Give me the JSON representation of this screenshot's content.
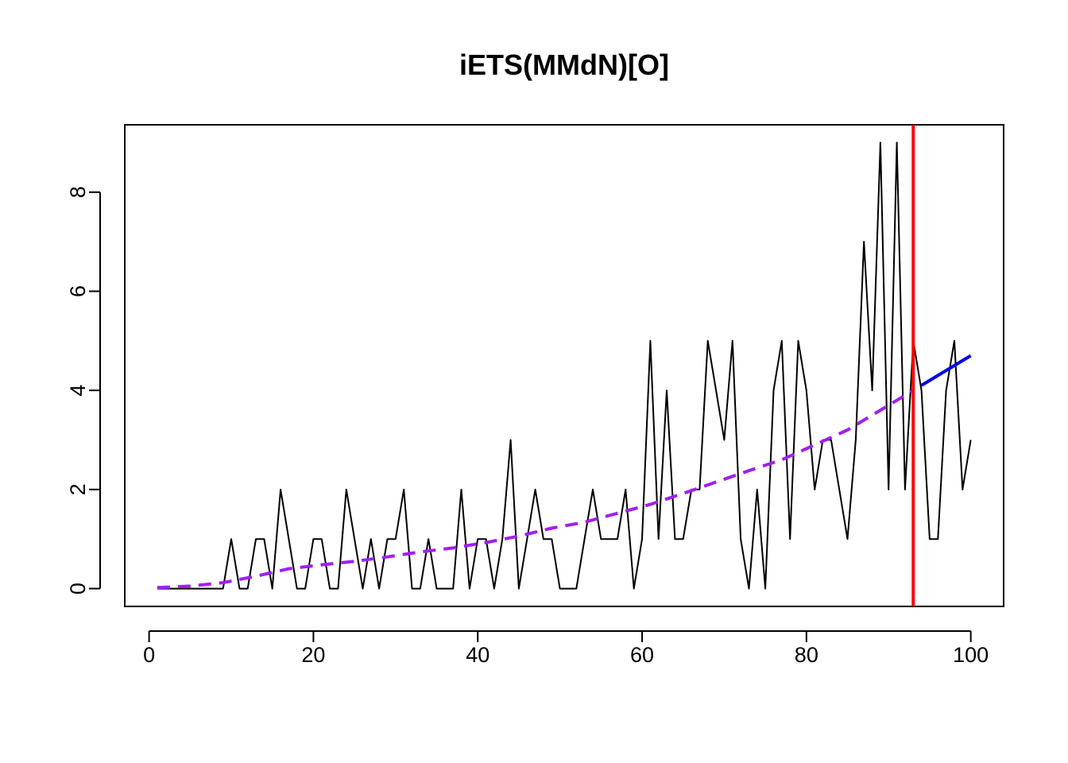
{
  "chart_data": {
    "type": "line",
    "title": "iETS(MMdN)[O]",
    "xlabel": "",
    "ylabel": "",
    "xlim": [
      -2.96,
      104.0
    ],
    "ylim": [
      -0.36,
      9.36
    ],
    "x_ticks": [
      0,
      20,
      40,
      60,
      80,
      100
    ],
    "y_ticks": [
      0,
      2,
      4,
      6,
      8
    ],
    "grid": false,
    "legend": "none",
    "series": [
      {
        "role": "actuals",
        "color": "#000000",
        "style": "solid",
        "x_start": 1,
        "values": [
          0,
          0,
          0,
          0,
          0,
          0,
          0,
          0,
          0,
          1,
          0,
          0,
          1,
          1,
          0,
          2,
          1,
          0,
          0,
          1,
          1,
          0,
          0,
          2,
          1,
          0,
          1,
          0,
          1,
          1,
          2,
          0,
          0,
          1,
          0,
          0,
          0,
          2,
          0,
          1,
          1,
          0,
          1,
          3,
          0,
          1,
          2,
          1,
          1,
          0,
          0,
          0,
          1,
          2,
          1,
          1,
          1,
          2,
          0,
          1,
          5,
          1,
          4,
          1,
          1,
          2,
          2,
          5,
          4,
          3,
          5,
          1,
          0,
          2,
          0,
          4,
          5,
          1,
          5,
          4,
          2,
          3,
          3,
          2,
          1,
          3,
          7,
          4,
          9,
          2,
          9,
          2,
          5,
          4,
          1,
          1,
          4,
          5,
          2,
          3
        ]
      },
      {
        "role": "fitted",
        "color": "#a020f0",
        "style": "dashed",
        "x": [
          1,
          5,
          9,
          13,
          17,
          21,
          25,
          29,
          33,
          37,
          41,
          45,
          49,
          53,
          57,
          61,
          65,
          69,
          73,
          77,
          81,
          85,
          89,
          93
        ],
        "values": [
          0.02,
          0.05,
          0.12,
          0.25,
          0.4,
          0.48,
          0.55,
          0.64,
          0.74,
          0.82,
          0.93,
          1.06,
          1.22,
          1.34,
          1.52,
          1.7,
          1.92,
          2.15,
          2.38,
          2.6,
          2.9,
          3.2,
          3.6,
          4.0
        ]
      },
      {
        "role": "forecast",
        "color": "#0000ee",
        "style": "solid",
        "x": [
          94,
          100
        ],
        "values": [
          4.1,
          4.7
        ]
      }
    ],
    "vline": {
      "x": 93,
      "color": "#ff0000"
    }
  }
}
